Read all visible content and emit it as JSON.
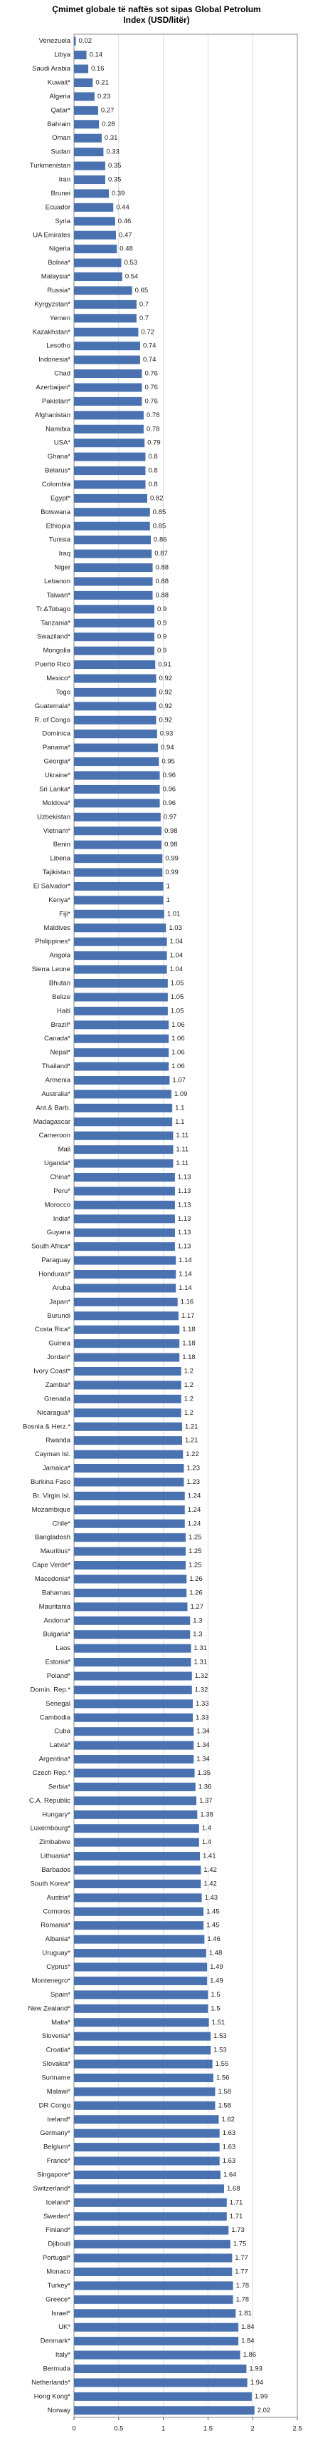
{
  "chart_data": {
    "type": "barh",
    "title": "Çmimet globale të naftës sot sipas Global Petrolum Index (USD/litër)",
    "color": "#4a72b0",
    "xlim": [
      0,
      2.5
    ],
    "xticks": [
      0,
      0.5,
      1,
      1.5,
      2,
      2.5
    ],
    "grid": true,
    "categories": [
      "Venezuela",
      "Libya",
      "Saudi Arabia",
      "Kuwait*",
      "Algeria",
      "Qatar*",
      "Bahrain",
      "Oman",
      "Sudan",
      "Turkmenistan",
      "Iran",
      "Brunei",
      "Ecuador",
      "Syria",
      "UA Emirates",
      "Nigeria",
      "Bolivia*",
      "Malaysia*",
      "Russia*",
      "Kyrgyzstan*",
      "Yemen",
      "Kazakhstan*",
      "Lesotho",
      "Indonesia*",
      "Chad",
      "Azerbaijan*",
      "Pakistan*",
      "Afghanistan",
      "Namibia",
      "USA*",
      "Ghana*",
      "Belarus*",
      "Colombia",
      "Egypt*",
      "Botswana",
      "Ethiopia",
      "Tunisia",
      "Iraq",
      "Niger",
      "Lebanon",
      "Taiwan*",
      "Tr.&Tobago",
      "Tanzania*",
      "Swaziland*",
      "Mongolia",
      "Puerto Rico",
      "Mexico*",
      "Togo",
      "Guatemala*",
      "R. of Congo",
      "Dominica",
      "Panama*",
      "Georgia*",
      "Ukraine*",
      "Sri Lanka*",
      "Moldova*",
      "Uzbekistan",
      "Vietnam*",
      "Benin",
      "Liberia",
      "Tajikistan",
      "El Salvador*",
      "Kenya*",
      "Fiji*",
      "Maldives",
      "Philippines*",
      "Angola",
      "Sierra Leone",
      "Bhutan",
      "Belize",
      "Haiti",
      "Brazil*",
      "Canada*",
      "Nepal*",
      "Thailand*",
      "Armenia",
      "Australia*",
      "Ant.& Barb.",
      "Madagascar",
      "Cameroon",
      "Mali",
      "Uganda*",
      "China*",
      "Peru*",
      "Morocco",
      "India*",
      "Guyana",
      "South Africa*",
      "Paraguay",
      "Honduras*",
      "Aruba",
      "Japan*",
      "Burundi",
      "Costa Rica*",
      "Guinea",
      "Jordan*",
      "Ivory Coast*",
      "Zambia*",
      "Grenada",
      "Nicaragua*",
      "Bosnia & Herz.*",
      "Rwanda",
      "Cayman Isl.",
      "Jamaica*",
      "Burkina Faso",
      "Br. Virgin Isl.",
      "Mozambique",
      "Chile*",
      "Bangladesh",
      "Mauritius*",
      "Cape Verde*",
      "Macedonia*",
      "Bahamas",
      "Mauritania",
      "Andorra*",
      "Bulgaria*",
      "Laos",
      "Estonia*",
      "Poland*",
      "Domin. Rep.*",
      "Senegal",
      "Cambodia",
      "Cuba",
      "Latvia*",
      "Argentina*",
      "Czech Rep.*",
      "Serbia*",
      "C.A. Republic",
      "Hungary*",
      "Luxembourg*",
      "Zimbabwe",
      "Lithuania*",
      "Barbados",
      "South Korea*",
      "Austria*",
      "Comoros",
      "Romania*",
      "Albania*",
      "Uruguay*",
      "Cyprus*",
      "Montenegro*",
      "Spain*",
      "New Zealand*",
      "Malta*",
      "Slovenia*",
      "Croatia*",
      "Slovakia*",
      "Suriname",
      "Malawi*",
      "DR Congo",
      "Ireland*",
      "Germany*",
      "Belgium*",
      "France*",
      "Singapore*",
      "Switzerland*",
      "Iceland*",
      "Sweden*",
      "Finland*",
      "Djibouti",
      "Portugal*",
      "Monaco",
      "Turkey*",
      "Greece*",
      "Israel*",
      "UK*",
      "Denmark*",
      "Italy*",
      "Bermuda",
      "Netherlands*",
      "Hong Kong*",
      "Norway"
    ],
    "values": [
      0.02,
      0.14,
      0.16,
      0.21,
      0.23,
      0.27,
      0.28,
      0.31,
      0.33,
      0.35,
      0.35,
      0.39,
      0.44,
      0.46,
      0.47,
      0.48,
      0.53,
      0.54,
      0.65,
      0.7,
      0.7,
      0.72,
      0.74,
      0.74,
      0.76,
      0.76,
      0.76,
      0.78,
      0.78,
      0.79,
      0.8,
      0.8,
      0.8,
      0.82,
      0.85,
      0.85,
      0.86,
      0.87,
      0.88,
      0.88,
      0.88,
      0.9,
      0.9,
      0.9,
      0.9,
      0.91,
      0.92,
      0.92,
      0.92,
      0.92,
      0.93,
      0.94,
      0.95,
      0.96,
      0.96,
      0.96,
      0.97,
      0.98,
      0.98,
      0.99,
      0.99,
      1,
      1,
      1.01,
      1.03,
      1.04,
      1.04,
      1.04,
      1.05,
      1.05,
      1.05,
      1.06,
      1.06,
      1.06,
      1.06,
      1.07,
      1.09,
      1.1,
      1.1,
      1.11,
      1.11,
      1.11,
      1.13,
      1.13,
      1.13,
      1.13,
      1.13,
      1.13,
      1.14,
      1.14,
      1.14,
      1.16,
      1.17,
      1.18,
      1.18,
      1.18,
      1.2,
      1.2,
      1.2,
      1.2,
      1.21,
      1.21,
      1.22,
      1.23,
      1.23,
      1.24,
      1.24,
      1.24,
      1.25,
      1.25,
      1.25,
      1.26,
      1.26,
      1.27,
      1.3,
      1.3,
      1.31,
      1.31,
      1.32,
      1.32,
      1.33,
      1.33,
      1.34,
      1.34,
      1.34,
      1.35,
      1.36,
      1.37,
      1.38,
      1.4,
      1.4,
      1.41,
      1.42,
      1.42,
      1.43,
      1.45,
      1.45,
      1.46,
      1.48,
      1.49,
      1.49,
      1.5,
      1.5,
      1.51,
      1.53,
      1.53,
      1.55,
      1.56,
      1.58,
      1.58,
      1.62,
      1.63,
      1.63,
      1.63,
      1.64,
      1.68,
      1.71,
      1.71,
      1.73,
      1.75,
      1.77,
      1.77,
      1.78,
      1.78,
      1.81,
      1.84,
      1.84,
      1.86,
      1.93,
      1.94,
      1.99,
      2.02
    ]
  }
}
